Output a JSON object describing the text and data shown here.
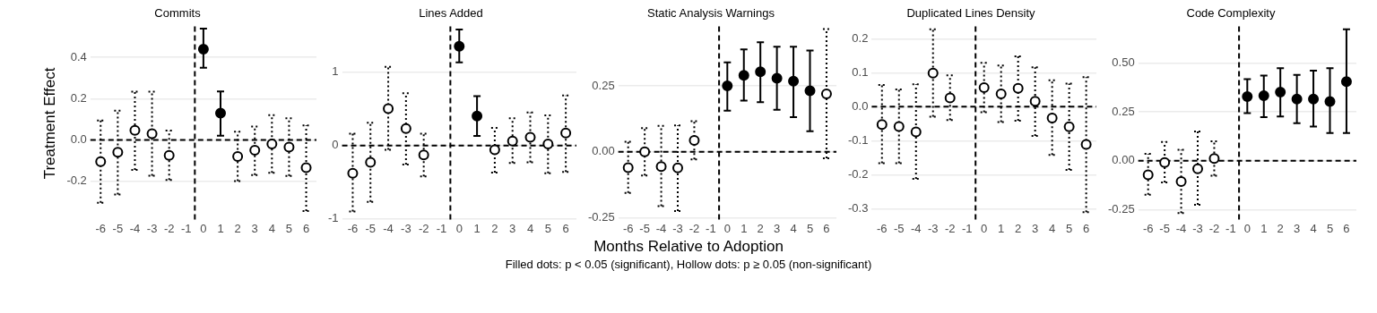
{
  "chart_data": [
    {
      "type": "scatter",
      "title": "Commits",
      "ylabel": "Treatment Effect",
      "xlim": [
        -6.6,
        6.6
      ],
      "xticks": [
        -6,
        -5,
        -4,
        -3,
        -2,
        -1,
        0,
        1,
        2,
        3,
        4,
        5,
        6
      ],
      "ylim": [
        -0.39,
        0.55
      ],
      "yticks": [
        {
          "value": -0.2,
          "label": "-0.2"
        },
        {
          "value": 0,
          "label": "0.0"
        },
        {
          "value": 0.2,
          "label": "0.2"
        },
        {
          "value": 0.4,
          "label": "0.4"
        }
      ],
      "grid": "y",
      "legend": false,
      "marker": "circle",
      "ref_lines": [
        {
          "axis": "x",
          "value": -0.5,
          "line_style": "dashed",
          "color": "#000000"
        },
        {
          "axis": "y",
          "value": 0,
          "line_style": "dashed",
          "color": "#000000"
        }
      ],
      "series": [
        {
          "color": "#000000",
          "line_style": "dotted",
          "x": [
            -6,
            -5,
            -4,
            -3,
            -2,
            2,
            3,
            4,
            5,
            6
          ],
          "values": [
            -0.105,
            -0.06,
            0.046,
            0.03,
            -0.075,
            -0.08,
            -0.05,
            -0.02,
            -0.035,
            -0.135
          ],
          "errors": [
            [
              -0.305,
              0.094
            ],
            [
              -0.265,
              0.142
            ],
            [
              -0.146,
              0.234
            ],
            [
              -0.174,
              0.234
            ],
            [
              -0.194,
              0.045
            ],
            [
              -0.2,
              0.04
            ],
            [
              -0.17,
              0.065
            ],
            [
              -0.16,
              0.12
            ],
            [
              -0.175,
              0.105
            ],
            [
              -0.345,
              0.07
            ]
          ]
        },
        {
          "color": "#000000",
          "line_style": "solid",
          "x": [
            0,
            1
          ],
          "values": [
            0.44,
            0.13
          ],
          "errors": [
            [
              0.35,
              0.54
            ],
            [
              0.02,
              0.235
            ]
          ]
        }
      ]
    },
    {
      "type": "scatter",
      "title": "Lines Added",
      "xlim": [
        -6.6,
        6.6
      ],
      "xticks": [
        -6,
        -5,
        -4,
        -3,
        -2,
        -1,
        0,
        1,
        2,
        3,
        4,
        5,
        6
      ],
      "ylim": [
        -1.02,
        1.62
      ],
      "yticks": [
        -1,
        0,
        1
      ],
      "grid": "y",
      "legend": false,
      "marker": "circle",
      "ref_lines": [
        {
          "axis": "x",
          "value": -0.5,
          "line_style": "dashed",
          "color": "#000000"
        },
        {
          "axis": "y",
          "value": 0,
          "line_style": "dashed",
          "color": "#000000"
        }
      ],
      "series": [
        {
          "color": "#000000",
          "line_style": "dotted",
          "x": [
            -6,
            -5,
            -4,
            -3,
            -2,
            2,
            3,
            4,
            5,
            6
          ],
          "values": [
            -0.38,
            -0.23,
            0.5,
            0.23,
            -0.13,
            -0.06,
            0.06,
            0.11,
            0.02,
            0.17
          ],
          "errors": [
            [
              -0.9,
              0.16
            ],
            [
              -0.77,
              0.31
            ],
            [
              -0.06,
              1.07
            ],
            [
              -0.26,
              0.71
            ],
            [
              -0.42,
              0.16
            ],
            [
              -0.37,
              0.24
            ],
            [
              -0.24,
              0.37
            ],
            [
              -0.23,
              0.45
            ],
            [
              -0.38,
              0.41
            ],
            [
              -0.36,
              0.68
            ]
          ]
        },
        {
          "color": "#000000",
          "line_style": "solid",
          "x": [
            0,
            1
          ],
          "values": [
            1.35,
            0.4
          ],
          "errors": [
            [
              1.13,
              1.58
            ],
            [
              0.13,
              0.67
            ]
          ]
        }
      ]
    },
    {
      "type": "scatter",
      "title": "Static Analysis Warnings",
      "xlabel": "Months Relative to Adoption",
      "annotations": [
        "Filled dots: p < 0.05 (significant), Hollow dots: p ≥ 0.05 (non-significant)"
      ],
      "xlim": [
        -6.6,
        6.6
      ],
      "xticks": [
        -6,
        -5,
        -4,
        -3,
        -2,
        -1,
        0,
        1,
        2,
        3,
        4,
        5,
        6
      ],
      "ylim": [
        -0.26,
        0.475
      ],
      "yticks": [
        -0.25,
        {
          "value": 0,
          "label": "0.00"
        },
        0.25
      ],
      "grid": "y",
      "legend": false,
      "marker": "circle",
      "ref_lines": [
        {
          "axis": "x",
          "value": -0.5,
          "line_style": "dashed",
          "color": "#000000"
        },
        {
          "axis": "y",
          "value": 0,
          "line_style": "dashed",
          "color": "#000000"
        }
      ],
      "series": [
        {
          "color": "#000000",
          "line_style": "dotted",
          "x": [
            -6,
            -5,
            -4,
            -3,
            -2,
            6
          ],
          "values": [
            -0.06,
            0.0,
            -0.056,
            -0.061,
            0.043,
            0.219
          ],
          "errors": [
            [
              -0.156,
              0.038
            ],
            [
              -0.09,
              0.09
            ],
            [
              -0.206,
              0.098
            ],
            [
              -0.225,
              0.1
            ],
            [
              -0.029,
              0.116
            ],
            [
              -0.025,
              0.465
            ]
          ]
        },
        {
          "color": "#000000",
          "line_style": "solid",
          "x": [
            0,
            1,
            2,
            3,
            4,
            5
          ],
          "values": [
            0.25,
            0.29,
            0.303,
            0.279,
            0.268,
            0.231
          ],
          "errors": [
            [
              0.156,
              0.339
            ],
            [
              0.194,
              0.388
            ],
            [
              0.188,
              0.415
            ],
            [
              0.159,
              0.398
            ],
            [
              0.131,
              0.398
            ],
            [
              0.078,
              0.384
            ]
          ]
        }
      ]
    },
    {
      "type": "scatter",
      "title": "Duplicated Lines Density",
      "xlim": [
        -6.6,
        6.6
      ],
      "xticks": [
        -6,
        -5,
        -4,
        -3,
        -2,
        -1,
        0,
        1,
        2,
        3,
        4,
        5,
        6
      ],
      "ylim": [
        -0.334,
        0.236
      ],
      "yticks": [
        -0.3,
        -0.2,
        -0.1,
        {
          "value": 0,
          "label": "0.0"
        },
        0.1,
        0.2
      ],
      "grid": "y",
      "legend": false,
      "marker": "circle",
      "ref_lines": [
        {
          "axis": "x",
          "value": -0.5,
          "line_style": "dashed",
          "color": "#000000"
        },
        {
          "axis": "y",
          "value": 0,
          "line_style": "dashed",
          "color": "#000000"
        }
      ],
      "series": [
        {
          "color": "#000000",
          "line_style": "dotted",
          "x": [
            -6,
            -5,
            -4,
            -3,
            -2,
            0,
            1,
            2,
            3,
            4,
            5,
            6
          ],
          "values": [
            -0.052,
            -0.058,
            -0.074,
            0.099,
            0.026,
            0.056,
            0.038,
            0.054,
            0.016,
            -0.033,
            -0.059,
            -0.111
          ],
          "errors": [
            [
              -0.166,
              0.064
            ],
            [
              -0.166,
              0.051
            ],
            [
              -0.212,
              0.066
            ],
            [
              -0.029,
              0.228
            ],
            [
              -0.039,
              0.092
            ],
            [
              -0.016,
              0.129
            ],
            [
              -0.045,
              0.121
            ],
            [
              -0.041,
              0.148
            ],
            [
              -0.086,
              0.116
            ],
            [
              -0.142,
              0.078
            ],
            [
              -0.186,
              0.068
            ],
            [
              -0.31,
              0.087
            ]
          ]
        }
      ]
    },
    {
      "type": "scatter",
      "title": "Code Complexity",
      "xlim": [
        -6.6,
        6.6
      ],
      "xticks": [
        -6,
        -5,
        -4,
        -3,
        -2,
        -1,
        0,
        1,
        2,
        3,
        4,
        5,
        6
      ],
      "ylim": [
        -0.305,
        0.688
      ],
      "yticks": [
        -0.25,
        {
          "value": 0,
          "label": "0.00"
        },
        0.25,
        {
          "value": 0.5,
          "label": "0.50"
        }
      ],
      "grid": "y",
      "legend": false,
      "marker": "circle",
      "ref_lines": [
        {
          "axis": "x",
          "value": -0.5,
          "line_style": "dashed",
          "color": "#000000"
        },
        {
          "axis": "y",
          "value": 0,
          "line_style": "dashed",
          "color": "#000000"
        }
      ],
      "series": [
        {
          "color": "#000000",
          "line_style": "dotted",
          "x": [
            -6,
            -5,
            -4,
            -3,
            -2
          ],
          "values": [
            -0.072,
            -0.009,
            -0.106,
            -0.041,
            0.012
          ],
          "errors": [
            [
              -0.174,
              0.036
            ],
            [
              -0.111,
              0.096
            ],
            [
              -0.268,
              0.056
            ],
            [
              -0.225,
              0.15
            ],
            [
              -0.077,
              0.1
            ]
          ]
        },
        {
          "color": "#000000",
          "line_style": "solid",
          "x": [
            0,
            1,
            2,
            3,
            4,
            5,
            6
          ],
          "values": [
            0.329,
            0.333,
            0.352,
            0.316,
            0.316,
            0.304,
            0.406
          ],
          "errors": [
            [
              0.244,
              0.418
            ],
            [
              0.224,
              0.437
            ],
            [
              0.227,
              0.474
            ],
            [
              0.193,
              0.44
            ],
            [
              0.176,
              0.462
            ],
            [
              0.142,
              0.474
            ],
            [
              0.142,
              0.674
            ]
          ]
        }
      ]
    }
  ]
}
